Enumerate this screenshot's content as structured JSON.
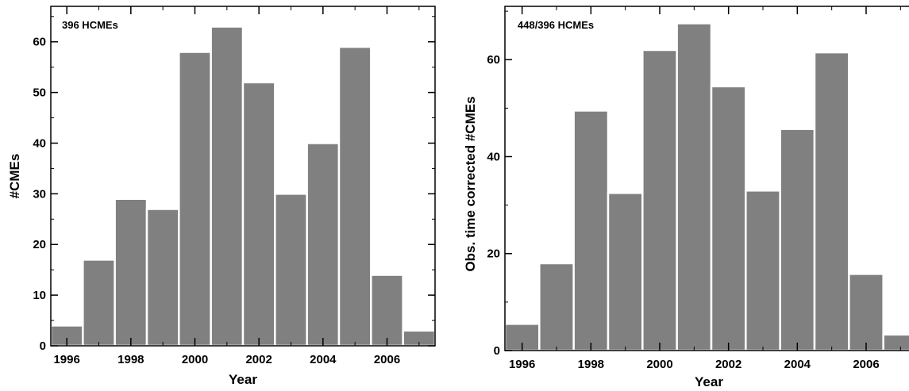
{
  "colors": {
    "bar": "#808080",
    "bar_edge": "#ffffff",
    "axis": "#000000",
    "background": "#ffffff"
  },
  "chart_data": [
    {
      "type": "bar",
      "annotation": "396 HCMEs",
      "title": "",
      "xlabel": "Year",
      "ylabel": "#CMEs",
      "categories": [
        "1996",
        "1997",
        "1998",
        "1999",
        "2000",
        "2001",
        "2002",
        "2003",
        "2004",
        "2005",
        "2006",
        "2007"
      ],
      "values": [
        4,
        17,
        29,
        27,
        58,
        63,
        52,
        30,
        40,
        59,
        14,
        3
      ],
      "xtick_labels": [
        "1996",
        "1998",
        "2000",
        "2002",
        "2004",
        "2006"
      ],
      "yticks": [
        0,
        10,
        20,
        30,
        40,
        50,
        60
      ],
      "ytick_labels": [
        "0",
        "10",
        "20",
        "30",
        "40",
        "50",
        "60"
      ],
      "ylim": [
        0,
        67
      ],
      "xlim": [
        1995.5,
        2007.5
      ],
      "grid": false,
      "legend": "none"
    },
    {
      "type": "bar",
      "annotation": "448/396 HCMEs",
      "title": "",
      "xlabel": "Year",
      "ylabel": "Obs. time corrected #CMEs",
      "categories": [
        "1996",
        "1997",
        "1998",
        "1999",
        "2000",
        "2001",
        "2002",
        "2003",
        "2004",
        "2005",
        "2006",
        "2007"
      ],
      "values": [
        5.5,
        18,
        49.5,
        32.5,
        62,
        67.5,
        54.5,
        33,
        45.7,
        61.5,
        15.8,
        3.3
      ],
      "xtick_labels": [
        "1996",
        "1998",
        "2000",
        "2002",
        "2004",
        "2006"
      ],
      "yticks": [
        0,
        20,
        40,
        60
      ],
      "ytick_labels": [
        "0",
        "20",
        "40",
        "60"
      ],
      "ylim": [
        0,
        71
      ],
      "xlim": [
        1995.5,
        2007.5
      ],
      "grid": false,
      "legend": "none"
    }
  ]
}
